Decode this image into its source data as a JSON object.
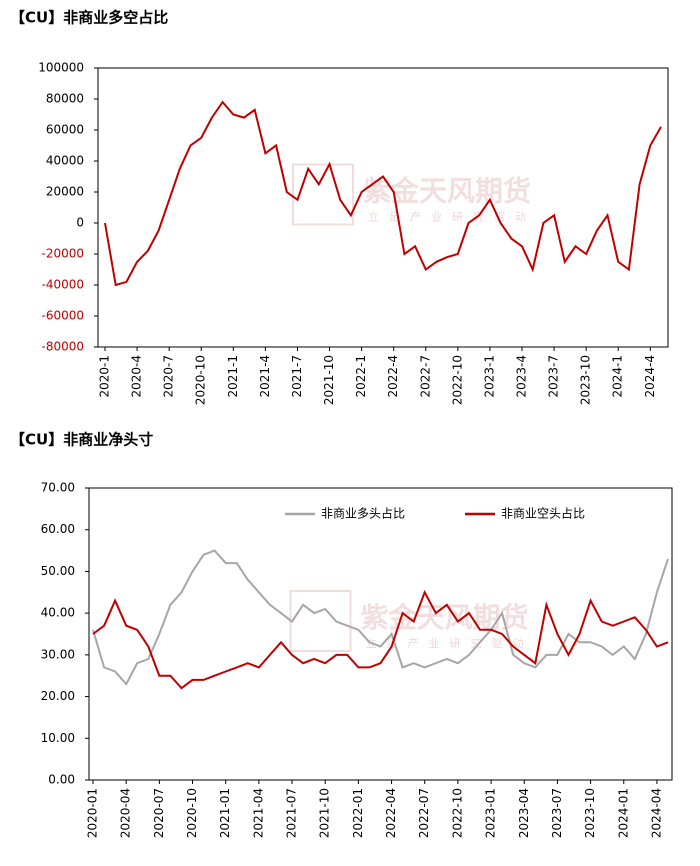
{
  "chart_data": [
    {
      "type": "line",
      "title": "【CU】非商业多空占比",
      "watermark": "紫金天风期货",
      "watermark_sub": "立足产业研究驱动",
      "categories": [
        "2020-1",
        null,
        null,
        "2020-4",
        null,
        null,
        "2020-7",
        null,
        null,
        "2020-10",
        null,
        null,
        "2021-1",
        null,
        null,
        "2021-4",
        null,
        null,
        "2021-7",
        null,
        null,
        "2021-10",
        null,
        null,
        "2022-1",
        null,
        null,
        "2022-4",
        null,
        null,
        "2022-7",
        null,
        null,
        "2022-10",
        null,
        null,
        "2023-1",
        null,
        null,
        "2023-4",
        null,
        null,
        "2023-7",
        null,
        null,
        "2023-10",
        null,
        null,
        "2024-1",
        null,
        null,
        "2024-4",
        null
      ],
      "series": [
        {
          "name": null,
          "color": "#c00000",
          "values": [
            0,
            -40000,
            -38000,
            -25000,
            -18000,
            -5000,
            15000,
            35000,
            50000,
            55000,
            68000,
            78000,
            70000,
            68000,
            73000,
            45000,
            50000,
            20000,
            15000,
            35000,
            25000,
            38000,
            15000,
            5000,
            20000,
            25000,
            30000,
            20000,
            -20000,
            -15000,
            -30000,
            -25000,
            -22000,
            -20000,
            0,
            5000,
            15000,
            0,
            -10000,
            -15000,
            -30000,
            0,
            5000,
            -25000,
            -15000,
            -20000,
            -5000,
            5000,
            -25000,
            -30000,
            25000,
            50000,
            62000
          ]
        }
      ],
      "ylim": [
        -80000,
        100000
      ],
      "yticks": [
        -80000,
        -60000,
        -40000,
        -20000,
        0,
        20000,
        40000,
        60000,
        80000,
        100000
      ],
      "negative_tick_color": "#c00000",
      "grid": false,
      "legend": null
    },
    {
      "type": "line",
      "title": "【CU】非商业净头寸",
      "watermark": "紫金天风期货",
      "watermark_sub": "立足产业研究驱动",
      "categories": [
        "2020-01",
        null,
        null,
        "2020-04",
        null,
        null,
        "2020-07",
        null,
        null,
        "2020-10",
        null,
        null,
        "2021-01",
        null,
        null,
        "2021-04",
        null,
        null,
        "2021-07",
        null,
        null,
        "2021-10",
        null,
        null,
        "2022-01",
        null,
        null,
        "2022-04",
        null,
        null,
        "2022-07",
        null,
        null,
        "2022-10",
        null,
        null,
        "2023-01",
        null,
        null,
        "2023-04",
        null,
        null,
        "2023-07",
        null,
        null,
        "2023-10",
        null,
        null,
        "2024-01",
        null,
        null,
        "2024-04",
        null
      ],
      "series": [
        {
          "name": "非商业多头占比",
          "color": "#a6a6a6",
          "values": [
            36,
            27,
            26,
            23,
            28,
            29,
            35,
            42,
            45,
            50,
            54,
            55,
            52,
            52,
            48,
            45,
            42,
            40,
            38,
            42,
            40,
            41,
            38,
            37,
            36,
            33,
            32,
            35,
            27,
            28,
            27,
            28,
            29,
            28,
            30,
            33,
            36,
            40,
            30,
            28,
            27,
            30,
            30,
            35,
            33,
            33,
            32,
            30,
            32,
            29,
            35,
            45,
            53
          ]
        },
        {
          "name": "非商业空头占比",
          "color": "#c00000",
          "values": [
            35,
            37,
            43,
            37,
            36,
            32,
            25,
            25,
            22,
            24,
            24,
            25,
            26,
            27,
            28,
            27,
            30,
            33,
            30,
            28,
            29,
            28,
            30,
            30,
            27,
            27,
            28,
            32,
            40,
            38,
            45,
            40,
            42,
            38,
            40,
            36,
            36,
            35,
            32,
            30,
            28,
            42,
            35,
            30,
            35,
            43,
            38,
            37,
            38,
            39,
            36,
            32,
            33
          ]
        }
      ],
      "ylim": [
        0,
        70
      ],
      "yticks": [
        {
          "value": 0,
          "label": "0.00"
        },
        {
          "value": 10,
          "label": "10.00"
        },
        {
          "value": 20,
          "label": "20.00"
        },
        {
          "value": 30,
          "label": "30.00"
        },
        {
          "value": 40,
          "label": "40.00"
        },
        {
          "value": 50,
          "label": "50.00"
        },
        {
          "value": 60,
          "label": "60.00"
        },
        {
          "value": 70,
          "label": "70.00"
        }
      ],
      "grid": false,
      "legend": "top-right"
    }
  ]
}
